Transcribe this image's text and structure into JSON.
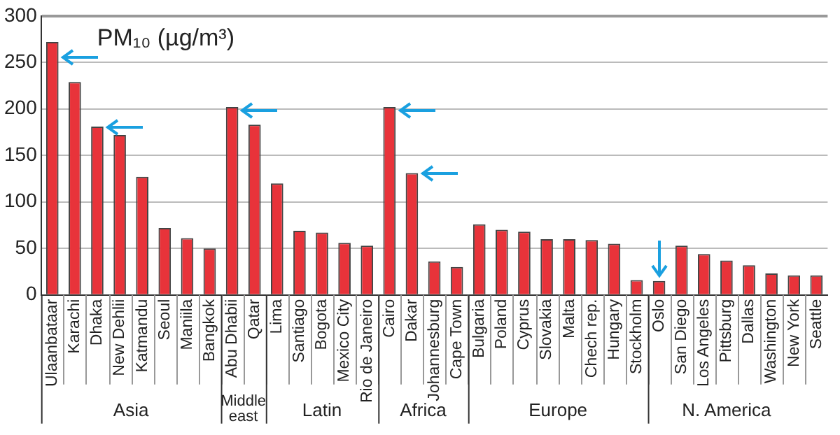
{
  "chart_data": {
    "type": "bar",
    "title": "PM₁₀ (µg/m³)",
    "categories": [
      "Ulaanbataar",
      "Karachi",
      "Dhaka",
      "New Dehlii",
      "Katmandu",
      "Seoul",
      "Maniila",
      "Bangkok",
      "Abu Dhabii",
      "Qatar",
      "Lima",
      "Santiago",
      "Bogota",
      "Mexico City",
      "Rio de Janeiro",
      "Cairo",
      "Dakar",
      "Johannesburg",
      "Cape Town",
      "Bulgaria",
      "Poland",
      "Cyprus",
      "Slovakia",
      "Malta",
      "Chech rep.",
      "Hungary",
      "Stockholm",
      "Oslo",
      "San Diego",
      "Los Angeles",
      "Pittsburg",
      "Dallas",
      "Washington",
      "New York",
      "Seattle"
    ],
    "values": [
      272,
      229,
      181,
      172,
      127,
      72,
      61,
      50,
      202,
      183,
      120,
      69,
      67,
      56,
      53,
      202,
      131,
      36,
      30,
      76,
      70,
      68,
      60,
      60,
      59,
      55,
      16,
      15,
      53,
      44,
      37,
      32,
      23,
      21,
      21
    ],
    "color": "#e8333a",
    "ylim": [
      0,
      300
    ],
    "yticks": [
      0,
      50,
      100,
      150,
      200,
      250,
      300
    ],
    "grid": "y",
    "legend": false,
    "annotations": [
      "Asia",
      "Middle east",
      "Latin",
      "Africa",
      "Europe",
      "N. America"
    ]
  }
}
